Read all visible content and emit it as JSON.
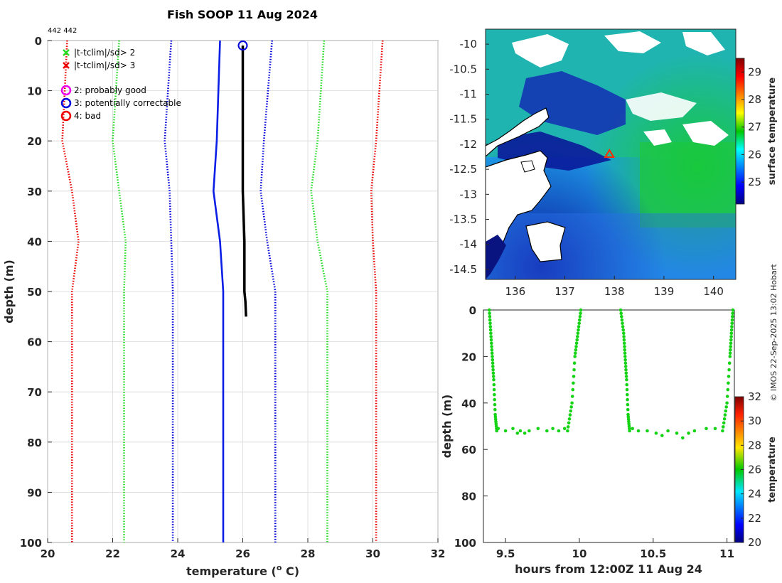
{
  "title": "Fish SOOP 11 Aug 2024",
  "count_label": "442 442",
  "copyright": "© IMOS 22-Sep-2025 13:02 Hobart",
  "legend": {
    "t2": "|t-tclim|/sd> 2",
    "t3": "|t-tclim|/sd> 3",
    "q2": "2: probably good",
    "q3": "3: potentially correctable",
    "q4": "4: bad"
  },
  "colors": {
    "green": "#22dd22",
    "red": "#ee0000",
    "blue": "#0000dd",
    "magenta": "#ee00ee",
    "profile_mean": "#0a1ee6",
    "profile_obs": "#000000",
    "scatter": "#14d214"
  },
  "chart_data": [
    {
      "type": "line",
      "name": "profile",
      "xlabel": "temperature (o C)",
      "xlabel_main": "temperature (",
      "xlabel_sup": "o",
      "xlabel_end": " C)",
      "ylabel": "depth (m)",
      "xlim": [
        20,
        32
      ],
      "ylim": [
        100,
        0
      ],
      "xticks": [
        20,
        22,
        24,
        26,
        28,
        30,
        32
      ],
      "yticks": [
        0,
        10,
        20,
        30,
        40,
        50,
        60,
        70,
        80,
        90,
        100
      ],
      "grid": true,
      "depth": [
        0,
        20,
        30,
        40,
        50,
        100
      ],
      "series": [
        {
          "name": "clim mean",
          "style": "solid",
          "color": "blue",
          "values": [
            25.3,
            25.2,
            25.1,
            25.3,
            25.4,
            25.4
          ]
        },
        {
          "name": "clim -1sd",
          "style": "dotted",
          "color": "blue",
          "values": [
            23.8,
            23.6,
            23.75,
            23.8,
            23.85,
            23.85
          ]
        },
        {
          "name": "clim +1sd",
          "style": "dotted",
          "color": "blue",
          "values": [
            26.9,
            26.65,
            26.55,
            26.75,
            27.0,
            27.0
          ]
        },
        {
          "name": "clim -2sd",
          "style": "dotted",
          "color": "green",
          "values": [
            22.2,
            22.0,
            22.2,
            22.4,
            22.35,
            22.35
          ]
        },
        {
          "name": "clim +2sd",
          "style": "dotted",
          "color": "green",
          "values": [
            28.5,
            28.3,
            28.1,
            28.3,
            28.6,
            28.6
          ]
        },
        {
          "name": "clim -3sd",
          "style": "dotted",
          "color": "red",
          "values": [
            20.6,
            20.45,
            20.75,
            20.95,
            20.75,
            20.75
          ]
        },
        {
          "name": "clim +3sd",
          "style": "dotted",
          "color": "red",
          "values": [
            30.3,
            30.1,
            29.95,
            30.0,
            30.1,
            30.1
          ]
        },
        {
          "name": "observed",
          "style": "solid",
          "color": "black",
          "depth": [
            1,
            10,
            20,
            30,
            40,
            48,
            50,
            52,
            55
          ],
          "values": [
            26.0,
            26.0,
            26.0,
            26.0,
            26.05,
            26.05,
            26.05,
            26.08,
            26.1
          ]
        }
      ],
      "flag": {
        "name": "3: potentially correctable",
        "x": 26.0,
        "depth": 1
      }
    },
    {
      "type": "heatmap",
      "name": "surface temperature map",
      "xlim": [
        135.4,
        140.45
      ],
      "ylim": [
        -14.7,
        -9.7
      ],
      "xticks": [
        136,
        137,
        138,
        139,
        140
      ],
      "yticks": [
        -10,
        -10.5,
        -11,
        -11.5,
        -12,
        -12.5,
        -13,
        -13.5,
        -14,
        -14.5
      ],
      "colorbar_label": "surface temperature",
      "colorbar_range": [
        24.2,
        29.5
      ],
      "colorbar_ticks": [
        25,
        26,
        27,
        28,
        29
      ],
      "marker": {
        "lon": 137.9,
        "lat": -12.2
      }
    },
    {
      "type": "scatter",
      "name": "depth vs time",
      "xlabel": "hours from 12:00Z 11 Aug 24",
      "ylabel": "depth (m)",
      "xlim": [
        9.35,
        11.05
      ],
      "ylim": [
        100,
        0
      ],
      "xticks": [
        9.5,
        10,
        10.5,
        11
      ],
      "yticks": [
        0,
        20,
        40,
        60,
        80,
        100
      ],
      "colorbar_label": "temperature",
      "colorbar_range": [
        20,
        32
      ],
      "colorbar_ticks": [
        20,
        22,
        24,
        26,
        28,
        30,
        32
      ],
      "segments": [
        {
          "t": [
            9.39,
            9.4,
            9.41,
            9.42,
            9.43,
            9.44
          ],
          "d": [
            0,
            10,
            20,
            30,
            45,
            52
          ]
        },
        {
          "t": [
            9.92,
            9.95,
            9.97,
            9.99,
            10.01
          ],
          "d": [
            52,
            40,
            20,
            10,
            0
          ]
        },
        {
          "t": [
            10.28,
            10.3,
            10.31,
            10.32,
            10.33,
            10.34
          ],
          "d": [
            0,
            10,
            20,
            30,
            45,
            52
          ]
        },
        {
          "t": [
            10.97,
            11.0,
            11.02,
            11.03,
            11.04
          ],
          "d": [
            52,
            40,
            20,
            10,
            0
          ]
        }
      ],
      "bottom_points": {
        "t": [
          9.45,
          9.5,
          9.55,
          9.58,
          9.6,
          9.63,
          9.66,
          9.72,
          9.78,
          9.82,
          9.86,
          9.9,
          10.36,
          10.4,
          10.46,
          10.52,
          10.56,
          10.6,
          10.66,
          10.7,
          10.74,
          10.78,
          10.86,
          10.92
        ],
        "d": [
          51,
          52,
          51,
          53,
          52,
          53,
          52,
          51,
          52,
          51,
          52,
          51,
          51,
          52,
          52,
          53,
          54,
          52,
          53,
          55,
          53,
          52,
          51,
          51
        ]
      }
    }
  ]
}
